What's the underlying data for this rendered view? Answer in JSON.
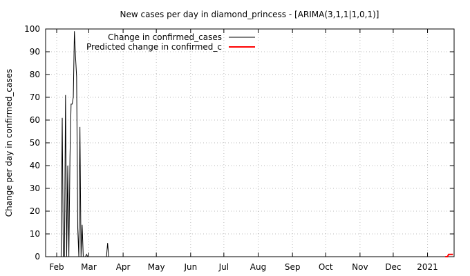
{
  "chart_data": {
    "type": "line",
    "title": "New cases per day in diamond_princess -  [ARIMA(3,1,1|1,0,1)]",
    "ylabel": "Change per day in confirmed_cases",
    "xlabel": "",
    "ylim": [
      0,
      100
    ],
    "y_ticks": [
      0,
      10,
      20,
      30,
      40,
      50,
      60,
      70,
      80,
      90,
      100
    ],
    "x_range": [
      "2020-01-22",
      "2021-01-25"
    ],
    "x_ticks": [
      {
        "date": "2020-02-01",
        "label": "Feb"
      },
      {
        "date": "2020-03-01",
        "label": "Mar"
      },
      {
        "date": "2020-04-01",
        "label": "Apr"
      },
      {
        "date": "2020-05-01",
        "label": "May"
      },
      {
        "date": "2020-06-01",
        "label": "Jun"
      },
      {
        "date": "2020-07-01",
        "label": "Jul"
      },
      {
        "date": "2020-08-01",
        "label": "Aug"
      },
      {
        "date": "2020-09-01",
        "label": "Sep"
      },
      {
        "date": "2020-10-01",
        "label": "Oct"
      },
      {
        "date": "2020-11-01",
        "label": "Nov"
      },
      {
        "date": "2020-12-01",
        "label": "Dec"
      },
      {
        "date": "2021-01-01",
        "label": "2021"
      }
    ],
    "grid": true,
    "legend_position": "top-left",
    "series": [
      {
        "name": "Change in confirmed_cases",
        "color": "#000000",
        "points": [
          [
            "2020-01-22",
            0
          ],
          [
            "2020-02-05",
            0
          ],
          [
            "2020-02-06",
            61
          ],
          [
            "2020-02-07",
            0
          ],
          [
            "2020-02-08",
            0
          ],
          [
            "2020-02-09",
            71
          ],
          [
            "2020-02-10",
            0
          ],
          [
            "2020-02-11",
            40
          ],
          [
            "2020-02-12",
            0
          ],
          [
            "2020-02-13",
            44
          ],
          [
            "2020-02-14",
            67
          ],
          [
            "2020-02-15",
            67
          ],
          [
            "2020-02-16",
            70
          ],
          [
            "2020-02-17",
            99
          ],
          [
            "2020-02-18",
            88
          ],
          [
            "2020-02-19",
            79
          ],
          [
            "2020-02-20",
            13
          ],
          [
            "2020-02-21",
            0
          ],
          [
            "2020-02-22",
            57
          ],
          [
            "2020-02-23",
            0
          ],
          [
            "2020-02-24",
            14
          ],
          [
            "2020-02-25",
            0
          ],
          [
            "2020-02-26",
            0
          ],
          [
            "2020-02-27",
            0
          ],
          [
            "2020-02-28",
            1
          ],
          [
            "2020-02-29",
            0
          ],
          [
            "2020-03-17",
            0
          ],
          [
            "2020-03-18",
            6
          ],
          [
            "2020-03-19",
            0
          ],
          [
            "2021-01-17",
            0
          ]
        ]
      },
      {
        "name": "Predicted change in confirmed_c",
        "color": "#ff0000",
        "points": [
          [
            "2021-01-17",
            0
          ],
          [
            "2021-01-19",
            0
          ],
          [
            "2021-01-20",
            1
          ],
          [
            "2021-01-22",
            1
          ],
          [
            "2021-01-24",
            1
          ]
        ]
      }
    ]
  }
}
